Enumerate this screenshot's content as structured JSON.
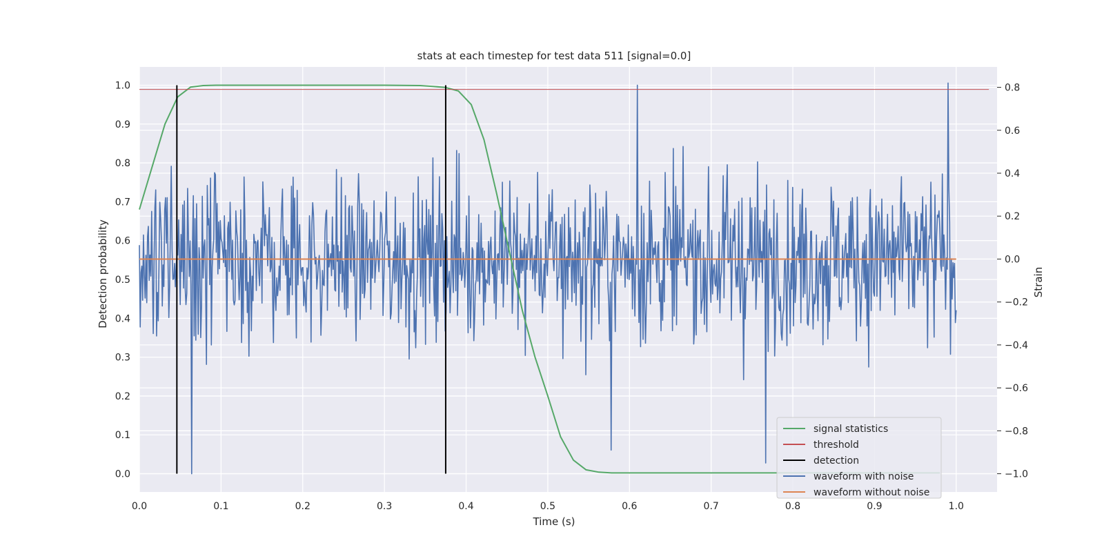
{
  "chart_data": {
    "type": "line",
    "title": "stats at each timestep for test data 511 [signal=0.0]",
    "xlabel": "Time (s)",
    "ylabel": "Detection probability",
    "y2label": "Strain",
    "xlim": [
      0.0,
      1.05
    ],
    "ylim": [
      -0.047,
      1.047
    ],
    "y2lim": [
      -1.085,
      0.895
    ],
    "xticks": [
      "0.0",
      "0.1",
      "0.2",
      "0.3",
      "0.4",
      "0.5",
      "0.6",
      "0.7",
      "0.8",
      "0.9",
      "1.0"
    ],
    "yticks": [
      "0.0",
      "0.1",
      "0.2",
      "0.3",
      "0.4",
      "0.5",
      "0.6",
      "0.7",
      "0.8",
      "0.9",
      "1.0"
    ],
    "y2ticks": [
      "−1.0",
      "−0.8",
      "−0.6",
      "−0.4",
      "−0.2",
      "0.0",
      "0.2",
      "0.4",
      "0.6",
      "0.8"
    ],
    "grid": true,
    "legend_position": "lower-right",
    "colors": {
      "background": "#eaeaf2",
      "grid": "#ffffff",
      "signal": "#55a868",
      "threshold": "#c44e52",
      "detection": "#000000",
      "noise": "#4c72b0",
      "clean": "#dd8452"
    },
    "series": [
      {
        "name": "signal statistics",
        "axis": "left",
        "x": [
          0.0,
          0.0156,
          0.0313,
          0.0469,
          0.0625,
          0.0781,
          0.0938,
          0.1094,
          0.125,
          0.1406,
          0.1563,
          0.2,
          0.25,
          0.3,
          0.3438,
          0.3594,
          0.375,
          0.3906,
          0.4063,
          0.4219,
          0.4375,
          0.4531,
          0.4688,
          0.4844,
          0.5,
          0.5156,
          0.5313,
          0.5469,
          0.5625,
          0.5781,
          0.6,
          0.7,
          0.8,
          0.9,
          0.98
        ],
        "y": [
          0.68,
          0.79,
          0.9,
          0.97,
          0.995,
          0.999,
          1.0,
          1.0,
          1.0,
          1.0,
          1.0,
          1.0,
          1.0,
          1.0,
          0.999,
          0.997,
          0.994,
          0.985,
          0.95,
          0.86,
          0.72,
          0.57,
          0.42,
          0.3,
          0.2,
          0.095,
          0.035,
          0.01,
          0.004,
          0.002,
          0.002,
          0.002,
          0.002,
          0.002,
          0.002
        ]
      },
      {
        "name": "threshold",
        "axis": "left",
        "x": [
          0.0,
          1.04
        ],
        "y": [
          0.989,
          0.989
        ]
      },
      {
        "name": "detection",
        "axis": "left",
        "type": "vline",
        "x": [
          0.0459,
          0.375
        ],
        "y": [
          0.0,
          1.0
        ]
      },
      {
        "name": "waveform with noise",
        "axis": "right",
        "x_range": [
          0.0,
          1.0
        ],
        "points": 1000,
        "amplitude_std": 0.27,
        "extremes": [
          {
            "x": 0.064,
            "y": -1.0
          },
          {
            "x": 0.61,
            "y": 0.81
          },
          {
            "x": 0.99,
            "y": 0.82
          },
          {
            "x": 0.578,
            "y": -0.89
          },
          {
            "x": 0.767,
            "y": -0.95
          }
        ]
      },
      {
        "name": "waveform without noise",
        "axis": "right",
        "x": [
          0.0,
          1.0
        ],
        "y": [
          0.0,
          0.0
        ]
      }
    ]
  }
}
